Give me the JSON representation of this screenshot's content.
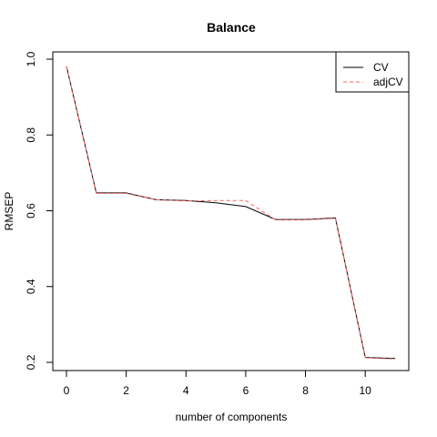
{
  "chart_data": {
    "type": "line",
    "title": "Balance",
    "xlabel": "number of components",
    "ylabel": "RMSEP",
    "x": [
      0,
      1,
      2,
      3,
      4,
      5,
      6,
      7,
      8,
      9,
      10,
      11
    ],
    "xlim": [
      0,
      11
    ],
    "ylim": [
      0.2,
      1.0
    ],
    "x_ticks": [
      0,
      2,
      4,
      6,
      8,
      10
    ],
    "y_ticks": [
      0.2,
      0.4,
      0.6,
      0.8,
      1.0
    ],
    "y_tick_labels": [
      "0.2",
      "0.4",
      "0.6",
      "0.8",
      "1.0"
    ],
    "grid": false,
    "legend_position": "top-right",
    "series": [
      {
        "name": "CV",
        "color": "#000000",
        "linestyle": "solid",
        "values": [
          0.981,
          0.647,
          0.647,
          0.629,
          0.627,
          0.621,
          0.611,
          0.577,
          0.577,
          0.581,
          0.213,
          0.21
        ]
      },
      {
        "name": "adjCV",
        "color": "#ff6060",
        "linestyle": "dashed",
        "values": [
          0.981,
          0.646,
          0.646,
          0.629,
          0.626,
          0.627,
          0.627,
          0.576,
          0.576,
          0.58,
          0.212,
          0.209
        ]
      }
    ]
  }
}
